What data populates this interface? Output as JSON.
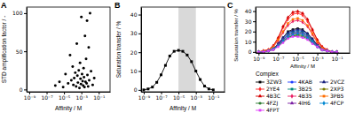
{
  "chart_data": [
    {
      "type": "scatter",
      "title": "A",
      "x_label": "Affinity / M",
      "y_label": "STD amplification factor / -",
      "log": "x",
      "color": "#000000",
      "marker": "circle",
      "x": [
        1e-06,
        3e-06,
        8e-06,
        1.5e-05,
        3e-05,
        5e-05,
        7e-05,
        0.0001,
        0.00012,
        0.00015,
        0.0002,
        0.00025,
        0.0003,
        0.00035,
        0.0004,
        0.0005,
        0.0006,
        0.0007,
        0.0008,
        0.0009,
        0.001,
        0.0012,
        0.0014,
        0.0016,
        0.0018,
        0.002,
        0.0023,
        0.0026,
        0.003,
        0.0035,
        0.004,
        0.0045,
        0.005,
        0.006,
        0.007,
        0.008,
        0.01,
        0.013,
        0.02,
        0.03
      ],
      "values": [
        5,
        10,
        3,
        20,
        8,
        45,
        12,
        30,
        6,
        15,
        22,
        4,
        60,
        18,
        9,
        25,
        2,
        35,
        14,
        7,
        95,
        20,
        11,
        5,
        28,
        16,
        3,
        70,
        10,
        40,
        8,
        90,
        19,
        4,
        55,
        12,
        100,
        24,
        6,
        15
      ],
      "xlim": [
        5e-10,
        2
      ],
      "xticks": [
        {
          "value": 1e-09,
          "label": "10⁻⁹"
        },
        {
          "value": 1e-07,
          "label": "10⁻⁷"
        },
        {
          "value": 1e-05,
          "label": "10⁻⁵"
        },
        {
          "value": 0.001,
          "label": "10⁻³"
        },
        {
          "value": 0.1,
          "label": "10⁻¹"
        }
      ],
      "ylim": [
        -3,
        108
      ],
      "yticks": [
        0,
        50,
        100
      ]
    },
    {
      "type": "line",
      "title": "B",
      "x_label": "Affinity / M",
      "y_label": "Saturation transfer / %",
      "log": "x",
      "color": "#000000",
      "marker": "square",
      "x": [
        1e-09,
        3.16e-09,
        1e-08,
        3.16e-08,
        1e-07,
        3.16e-07,
        1e-06,
        3.16e-06,
        1e-05,
        3.16e-05,
        0.0001,
        0.000316,
        0.001,
        0.00316,
        0.01,
        0.0316,
        0.1
      ],
      "values": [
        0,
        0.5,
        1.5,
        4,
        8,
        13,
        18,
        20.5,
        21,
        20.5,
        18.5,
        15,
        10,
        5.5,
        2,
        0.5,
        0
      ],
      "band": [
        1e-05,
        0.001
      ],
      "xlim": [
        5e-10,
        2
      ],
      "xticks": [
        {
          "value": 1e-09,
          "label": "10⁻⁹"
        },
        {
          "value": 1e-07,
          "label": "10⁻⁷"
        },
        {
          "value": 1e-05,
          "label": "10⁻⁵"
        },
        {
          "value": 0.001,
          "label": "10⁻³"
        },
        {
          "value": 0.1,
          "label": "10⁻¹"
        }
      ],
      "ylim": [
        -1,
        44
      ],
      "yticks": [
        0,
        10,
        20,
        30,
        40
      ]
    },
    {
      "type": "line",
      "title": "C",
      "x_label": "Affinity / M",
      "y_label": "Saturation transfer / %",
      "log": "x",
      "legend": "bottom",
      "legend_title": "Complex",
      "x": [
        1e-09,
        3.16e-09,
        1e-08,
        3.16e-08,
        1e-07,
        3.16e-07,
        1e-06,
        3.16e-06,
        1e-05,
        3.16e-05,
        0.0001,
        0.000316,
        0.001,
        0.00316,
        0.01,
        0.0316,
        0.1
      ],
      "series": [
        {
          "name": "3ZW3",
          "color": "#000000",
          "marker": "square",
          "values": [
            0,
            0,
            1,
            3,
            8,
            14,
            20,
            22,
            23,
            22,
            18,
            13,
            7,
            3,
            1,
            0,
            0
          ]
        },
        {
          "name": "4KAB",
          "color": "#1f3fff",
          "marker": "circle",
          "values": [
            0,
            0,
            1,
            3,
            7,
            13,
            18,
            20,
            21,
            20,
            17,
            12,
            6,
            3,
            1,
            0,
            0
          ]
        },
        {
          "name": "2VCZ",
          "color": "#1a237e",
          "marker": "triangle",
          "values": [
            0,
            0,
            1,
            3,
            8,
            14,
            19,
            21,
            22,
            21,
            18,
            12,
            7,
            3,
            1,
            0,
            0
          ]
        },
        {
          "name": "2YE4",
          "color": "#ff2a2a",
          "marker": "diamond",
          "values": [
            0,
            1,
            2,
            6,
            13,
            24,
            32,
            37,
            38,
            36,
            30,
            21,
            11,
            5,
            2,
            0,
            0
          ]
        },
        {
          "name": "3B25",
          "color": "#00897b",
          "marker": "square",
          "values": [
            0,
            0,
            1,
            3,
            7,
            12,
            17,
            19,
            20,
            19,
            16,
            11,
            6,
            2,
            1,
            0,
            0
          ]
        },
        {
          "name": "2XP3",
          "color": "#7b7b00",
          "marker": "circle",
          "values": [
            0,
            0,
            1,
            3,
            6,
            11,
            14,
            16,
            17,
            16,
            14,
            9,
            5,
            2,
            1,
            0,
            0
          ]
        },
        {
          "name": "4B3C",
          "color": "#d50000",
          "marker": "triangle",
          "values": [
            0,
            1,
            2,
            6,
            14,
            25,
            34,
            39,
            40,
            38,
            32,
            22,
            12,
            5,
            2,
            0,
            0
          ]
        },
        {
          "name": "4B35",
          "color": "#e91e63",
          "marker": "diamond",
          "values": [
            0,
            1,
            2,
            5,
            11,
            19,
            26,
            30,
            31,
            29,
            25,
            17,
            9,
            4,
            1,
            0,
            0
          ]
        },
        {
          "name": "3PB5",
          "color": "#ff6d00",
          "marker": "square",
          "values": [
            0,
            1,
            2,
            5,
            12,
            20,
            28,
            32,
            33,
            31,
            26,
            18,
            10,
            4,
            1,
            0,
            0
          ]
        },
        {
          "name": "4FZJ",
          "color": "#2e7d32",
          "marker": "circle",
          "values": [
            0,
            0,
            1,
            2,
            6,
            10,
            14,
            16,
            16,
            15,
            13,
            9,
            5,
            2,
            1,
            0,
            0
          ]
        },
        {
          "name": "4IH6",
          "color": "#7b1fa2",
          "marker": "triangle",
          "values": [
            0,
            0,
            1,
            3,
            7,
            12,
            16,
            18,
            19,
            18,
            15,
            10,
            6,
            2,
            1,
            0,
            0
          ]
        },
        {
          "name": "4FCP",
          "color": "#0288d1",
          "marker": "diamond",
          "values": [
            0,
            0,
            1,
            3,
            6,
            11,
            15,
            17,
            18,
            17,
            14,
            10,
            5,
            2,
            1,
            0,
            0
          ]
        },
        {
          "name": "4FPT",
          "color": "#e040fb",
          "marker": "square",
          "values": [
            0,
            0,
            1,
            2,
            5,
            9,
            13,
            15,
            15,
            14,
            12,
            8,
            5,
            2,
            1,
            0,
            0
          ]
        }
      ],
      "xlim": [
        5e-10,
        2
      ],
      "xticks": [
        {
          "value": 1e-09,
          "label": "10⁻⁹"
        },
        {
          "value": 1e-07,
          "label": "10⁻⁷"
        },
        {
          "value": 1e-05,
          "label": "10⁻⁵"
        },
        {
          "value": 0.001,
          "label": "10⁻³"
        },
        {
          "value": 0.1,
          "label": "10⁻¹"
        }
      ],
      "ylim": [
        -1,
        44
      ],
      "yticks": [
        0,
        10,
        20,
        30,
        40
      ]
    }
  ]
}
